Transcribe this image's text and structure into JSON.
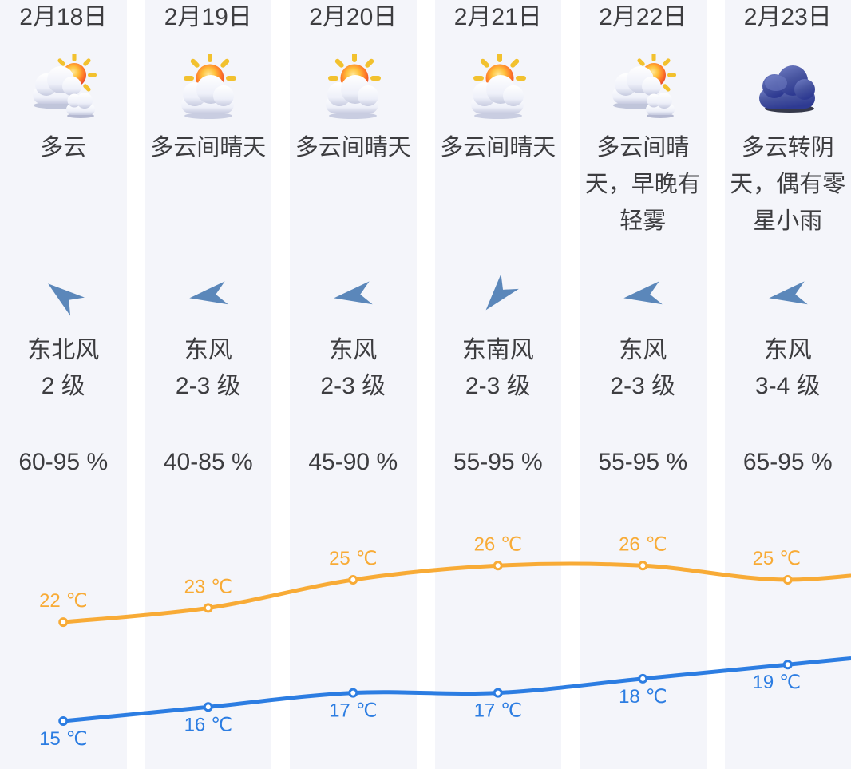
{
  "page": {
    "background": "#ffffff",
    "column_background": "#f4f5fa",
    "text_color": "#3d3d40"
  },
  "colors": {
    "high_temp_line": "#f8ab36",
    "low_temp_line": "#2c7de2",
    "wind_arrow": "#5b87ba",
    "overcast_cloud": "#4352a3",
    "sun": "#f0462e",
    "sun_rays": "#f2c12e"
  },
  "days": [
    {
      "date": "2月18日",
      "icon": "sun-behind-clouds",
      "desc": "多云",
      "wind_arrow": "southwest",
      "wind_direction": "东北风",
      "wind_level": "2 级",
      "humidity": "60-95 %"
    },
    {
      "date": "2月19日",
      "icon": "sun-with-cloud",
      "desc": "多云间晴天",
      "wind_arrow": "west",
      "wind_direction": "东风",
      "wind_level": "2-3 级",
      "humidity": "40-85 %"
    },
    {
      "date": "2月20日",
      "icon": "sun-with-cloud",
      "desc": "多云间晴天",
      "wind_arrow": "west",
      "wind_direction": "东风",
      "wind_level": "2-3 级",
      "humidity": "45-90 %"
    },
    {
      "date": "2月21日",
      "icon": "sun-with-cloud",
      "desc": "多云间晴天",
      "wind_arrow": "northwest",
      "wind_direction": "东南风",
      "wind_level": "2-3 级",
      "humidity": "55-95 %"
    },
    {
      "date": "2月22日",
      "icon": "sun-behind-clouds",
      "desc": "多云间晴\n天，早晚有\n轻雾",
      "wind_arrow": "west",
      "wind_direction": "东风",
      "wind_level": "2-3 级",
      "humidity": "55-95 %"
    },
    {
      "date": "2月23日",
      "icon": "dark-cloud",
      "desc": "多云转阴\n天，偶有零\n星小雨",
      "wind_arrow": "west",
      "wind_direction": "东风",
      "wind_level": "3-4 级",
      "humidity": "65-95 %"
    }
  ],
  "chart_data": {
    "type": "line",
    "categories": [
      "2月18日",
      "2月19日",
      "2月20日",
      "2月21日",
      "2月22日",
      "2月23日"
    ],
    "series": [
      {
        "name": "high_temp",
        "unit": "℃",
        "color": "#f8ab36",
        "values": [
          22,
          23,
          25,
          26,
          26,
          25
        ],
        "labels": [
          "22 ℃",
          "23 ℃",
          "25 ℃",
          "26 ℃",
          "26 ℃",
          "25 ℃"
        ],
        "label_position": "above"
      },
      {
        "name": "low_temp",
        "unit": "℃",
        "color": "#2c7de2",
        "values": [
          15,
          16,
          17,
          17,
          18,
          19
        ],
        "labels": [
          "15 ℃",
          "16 ℃",
          "17 ℃",
          "17 ℃",
          "18 ℃",
          "19 ℃"
        ],
        "label_position": "below"
      }
    ],
    "grid": false,
    "legend": false,
    "point_markers": "white-filled-circles",
    "curve": "smooth",
    "extends_beyond_right_edge": true
  }
}
